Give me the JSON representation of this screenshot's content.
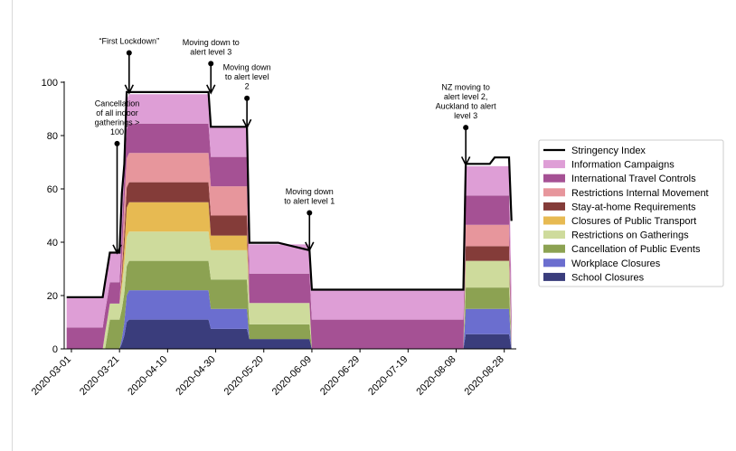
{
  "chart_data": {
    "type": "area",
    "title": "",
    "xlabel": "",
    "ylabel": "",
    "ylim": [
      0,
      100
    ],
    "yticks": [
      0,
      20,
      40,
      60,
      80,
      100
    ],
    "xlim": [
      "2020-02-27",
      "2020-09-02"
    ],
    "xticks": [
      "2020-03-01",
      "2020-03-21",
      "2020-04-10",
      "2020-04-30",
      "2020-05-20",
      "2020-06-09",
      "2020-06-29",
      "2020-07-19",
      "2020-08-08",
      "2020-08-28"
    ],
    "grid": false,
    "legend_position": "right",
    "dates": [
      "2020-02-28",
      "2020-03-08",
      "2020-03-14",
      "2020-03-15",
      "2020-03-16",
      "2020-03-17",
      "2020-03-19",
      "2020-03-21",
      "2020-03-22",
      "2020-03-23",
      "2020-03-24",
      "2020-03-25",
      "2020-03-26",
      "2020-04-27",
      "2020-04-28",
      "2020-05-13",
      "2020-05-14",
      "2020-05-26",
      "2020-06-08",
      "2020-06-09",
      "2020-08-11",
      "2020-08-12",
      "2020-08-21",
      "2020-08-22",
      "2020-08-24",
      "2020-08-30",
      "2020-08-31"
    ],
    "series": [
      {
        "name": "School Closures",
        "color": "#3a3d7c",
        "values": [
          0,
          0,
          0,
          0,
          0,
          0,
          0,
          0,
          2,
          5,
          10,
          11,
          11,
          11,
          7.5,
          7.5,
          3.7,
          3.7,
          3.7,
          0,
          0,
          5.5,
          5.5,
          5.5,
          5.5,
          5.5,
          0
        ]
      },
      {
        "name": "Workplace Closures",
        "color": "#6b6ecf",
        "values": [
          0,
          0,
          0,
          0,
          0,
          0,
          0,
          0,
          2,
          5,
          10,
          11,
          11,
          11,
          7.5,
          7.5,
          0,
          0,
          0,
          0,
          0,
          9.5,
          9.5,
          9.5,
          9.5,
          9.5,
          0
        ]
      },
      {
        "name": "Cancellation of Public Events",
        "color": "#8ca252",
        "values": [
          0,
          0,
          0,
          0,
          5.5,
          11,
          11,
          11,
          11,
          11,
          11,
          11,
          11,
          11,
          11,
          11,
          5.5,
          5.5,
          5.5,
          0,
          0,
          8,
          8,
          8,
          8,
          8,
          0
        ]
      },
      {
        "name": "Restrictions on Gatherings",
        "color": "#cedb9c",
        "values": [
          0,
          0,
          0,
          6,
          6,
          6,
          6,
          6,
          8,
          11,
          11,
          11,
          11,
          11,
          11,
          11,
          8,
          8,
          8,
          0,
          0,
          10,
          10,
          10,
          10,
          10,
          0
        ]
      },
      {
        "name": "Closures of Public Transport",
        "color": "#e7ba52",
        "values": [
          0,
          0,
          0,
          0,
          0,
          0,
          0,
          0,
          3,
          6,
          11,
          11,
          11,
          11,
          5.5,
          5.5,
          0,
          0,
          0,
          0,
          0,
          0,
          0,
          0,
          0,
          0,
          0
        ]
      },
      {
        "name": "Stay-at-home Requirements",
        "color": "#843c39",
        "values": [
          0,
          0,
          0,
          0,
          0,
          0,
          0,
          0,
          3,
          6,
          7.5,
          7.5,
          7.5,
          7.5,
          7.5,
          7.5,
          0,
          0,
          0,
          0,
          0,
          5.5,
          5.5,
          5.5,
          5.5,
          5.5,
          0
        ]
      },
      {
        "name": "Restrictions Internal Movement",
        "color": "#e7969c",
        "values": [
          0,
          0,
          0,
          0,
          0,
          0,
          0,
          0,
          5.5,
          11,
          11,
          11,
          11,
          11,
          11,
          11,
          0,
          0,
          0,
          0,
          0,
          8,
          8,
          8,
          8,
          8,
          0
        ]
      },
      {
        "name": "International Travel Controls",
        "color": "#a55194",
        "values": [
          8,
          8,
          8,
          8,
          8,
          8,
          8,
          8,
          10,
          11,
          11,
          11,
          11,
          11,
          11,
          11,
          11,
          11,
          11,
          11,
          11,
          11,
          11,
          11,
          11,
          11,
          11
        ]
      },
      {
        "name": "Information Campaigns",
        "color": "#de9ed6",
        "values": [
          11,
          11,
          11,
          11,
          11,
          11,
          11,
          11,
          11,
          11,
          11,
          11,
          11,
          11,
          11,
          11,
          11,
          11,
          11,
          11,
          11,
          11,
          11,
          11,
          11,
          11,
          11
        ]
      }
    ],
    "stringency_index": {
      "name": "Stringency Index",
      "color": "#000000",
      "values": [
        19.4,
        19.4,
        19.4,
        25,
        30.6,
        36.1,
        36.1,
        36.1,
        58.3,
        69.4,
        96.3,
        96.3,
        96.3,
        96.3,
        83.3,
        83.3,
        39.8,
        39.8,
        37,
        22.2,
        22.2,
        69.4,
        69.4,
        69.4,
        71.8,
        71.8,
        48
      ]
    },
    "annotations": [
      {
        "id": "a1",
        "lines": [
          "Cancellation",
          "of all indoor",
          "gatherings >",
          "100"
        ],
        "date": "2020-03-20",
        "from": 77,
        "to": 36
      },
      {
        "id": "a2",
        "lines": [
          "“First Lockdown”"
        ],
        "date": "2020-03-25",
        "from": 111,
        "to": 96
      },
      {
        "id": "a3",
        "lines": [
          "Moving down to",
          "alert level 3"
        ],
        "date": "2020-04-28",
        "from": 107,
        "to": 96
      },
      {
        "id": "a4",
        "lines": [
          "Moving down",
          "to alert level",
          "2"
        ],
        "date": "2020-05-13",
        "from": 94,
        "to": 83
      },
      {
        "id": "a5",
        "lines": [
          "Moving down",
          "to alert level 1"
        ],
        "date": "2020-06-08",
        "from": 51,
        "to": 37
      },
      {
        "id": "a6",
        "lines": [
          "NZ moving to",
          "alert level 2,",
          "Auckland to alert",
          "level 3"
        ],
        "date": "2020-08-12",
        "from": 83,
        "to": 69
      }
    ]
  }
}
